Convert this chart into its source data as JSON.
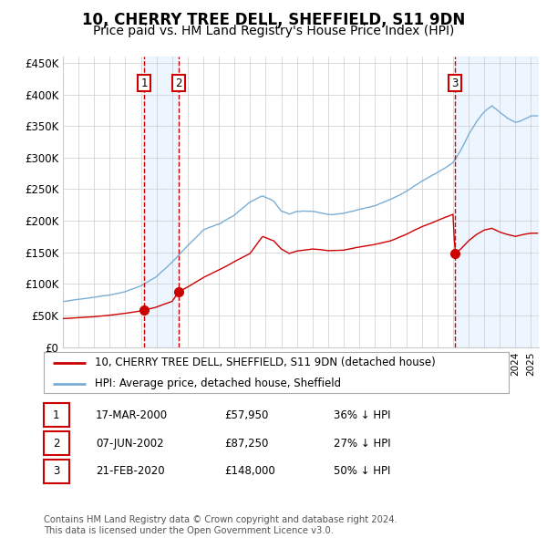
{
  "title": "10, CHERRY TREE DELL, SHEFFIELD, S11 9DN",
  "subtitle": "Price paid vs. HM Land Registry's House Price Index (HPI)",
  "title_fontsize": 12,
  "subtitle_fontsize": 10,
  "xlim": [
    1995.0,
    2025.5
  ],
  "ylim": [
    0,
    460000
  ],
  "yticks": [
    0,
    50000,
    100000,
    150000,
    200000,
    250000,
    300000,
    350000,
    400000,
    450000
  ],
  "ytick_labels": [
    "£0",
    "£50K",
    "£100K",
    "£150K",
    "£200K",
    "£250K",
    "£300K",
    "£350K",
    "£400K",
    "£450K"
  ],
  "transaction_color": "#cc0000",
  "hpi_color": "#7aaed6",
  "vline_color": "#cc0000",
  "shade_color": "#ddeeff",
  "grid_color": "#cccccc",
  "bg_color": "#ffffff",
  "transactions": [
    {
      "date_num": 2000.21,
      "price": 57950,
      "label": "1"
    },
    {
      "date_num": 2002.43,
      "price": 87250,
      "label": "2"
    },
    {
      "date_num": 2020.13,
      "price": 148000,
      "label": "3"
    }
  ],
  "legend_entries": [
    "10, CHERRY TREE DELL, SHEFFIELD, S11 9DN (detached house)",
    "HPI: Average price, detached house, Sheffield"
  ],
  "table_entries": [
    {
      "num": "1",
      "date": "17-MAR-2000",
      "price": "£57,950",
      "pct": "36% ↓ HPI"
    },
    {
      "num": "2",
      "date": "07-JUN-2002",
      "price": "£87,250",
      "pct": "27% ↓ HPI"
    },
    {
      "num": "3",
      "date": "21-FEB-2020",
      "price": "£148,000",
      "pct": "50% ↓ HPI"
    }
  ],
  "footnote": "Contains HM Land Registry data © Crown copyright and database right 2024.\nThis data is licensed under the Open Government Licence v3.0.",
  "label_box_color": "#cc0000",
  "hpi_keypoints": [
    [
      1995.0,
      72000
    ],
    [
      1996.0,
      75000
    ],
    [
      1997.0,
      78000
    ],
    [
      1998.0,
      82000
    ],
    [
      1999.0,
      88000
    ],
    [
      2000.0,
      97000
    ],
    [
      2001.0,
      112000
    ],
    [
      2002.0,
      135000
    ],
    [
      2003.0,
      160000
    ],
    [
      2004.0,
      185000
    ],
    [
      2005.0,
      195000
    ],
    [
      2006.0,
      210000
    ],
    [
      2007.0,
      230000
    ],
    [
      2007.8,
      240000
    ],
    [
      2008.5,
      232000
    ],
    [
      2009.0,
      215000
    ],
    [
      2009.5,
      210000
    ],
    [
      2010.0,
      215000
    ],
    [
      2011.0,
      215000
    ],
    [
      2012.0,
      210000
    ],
    [
      2013.0,
      212000
    ],
    [
      2014.0,
      218000
    ],
    [
      2015.0,
      225000
    ],
    [
      2016.0,
      235000
    ],
    [
      2017.0,
      248000
    ],
    [
      2018.0,
      265000
    ],
    [
      2019.0,
      280000
    ],
    [
      2020.0,
      295000
    ],
    [
      2020.5,
      315000
    ],
    [
      2021.0,
      340000
    ],
    [
      2021.5,
      360000
    ],
    [
      2022.0,
      375000
    ],
    [
      2022.5,
      385000
    ],
    [
      2023.0,
      375000
    ],
    [
      2023.5,
      365000
    ],
    [
      2024.0,
      358000
    ],
    [
      2024.5,
      362000
    ],
    [
      2025.0,
      368000
    ]
  ],
  "red_keypoints": [
    [
      1995.0,
      45000
    ],
    [
      1996.0,
      46500
    ],
    [
      1997.0,
      48000
    ],
    [
      1998.0,
      50000
    ],
    [
      1999.0,
      53000
    ],
    [
      2000.0,
      57000
    ],
    [
      2000.21,
      57950
    ],
    [
      2001.0,
      63000
    ],
    [
      2002.0,
      72000
    ],
    [
      2002.43,
      87250
    ],
    [
      2003.0,
      95000
    ],
    [
      2004.0,
      110000
    ],
    [
      2005.0,
      122000
    ],
    [
      2006.0,
      135000
    ],
    [
      2007.0,
      148000
    ],
    [
      2007.8,
      175000
    ],
    [
      2008.5,
      168000
    ],
    [
      2009.0,
      155000
    ],
    [
      2009.5,
      148000
    ],
    [
      2010.0,
      152000
    ],
    [
      2011.0,
      155000
    ],
    [
      2012.0,
      152000
    ],
    [
      2013.0,
      153000
    ],
    [
      2014.0,
      158000
    ],
    [
      2015.0,
      162000
    ],
    [
      2016.0,
      168000
    ],
    [
      2017.0,
      178000
    ],
    [
      2018.0,
      190000
    ],
    [
      2019.0,
      200000
    ],
    [
      2020.0,
      210000
    ],
    [
      2020.13,
      148000
    ],
    [
      2020.5,
      155000
    ],
    [
      2021.0,
      168000
    ],
    [
      2021.5,
      178000
    ],
    [
      2022.0,
      185000
    ],
    [
      2022.5,
      188000
    ],
    [
      2023.0,
      182000
    ],
    [
      2023.5,
      178000
    ],
    [
      2024.0,
      175000
    ],
    [
      2024.5,
      178000
    ],
    [
      2025.0,
      180000
    ]
  ]
}
